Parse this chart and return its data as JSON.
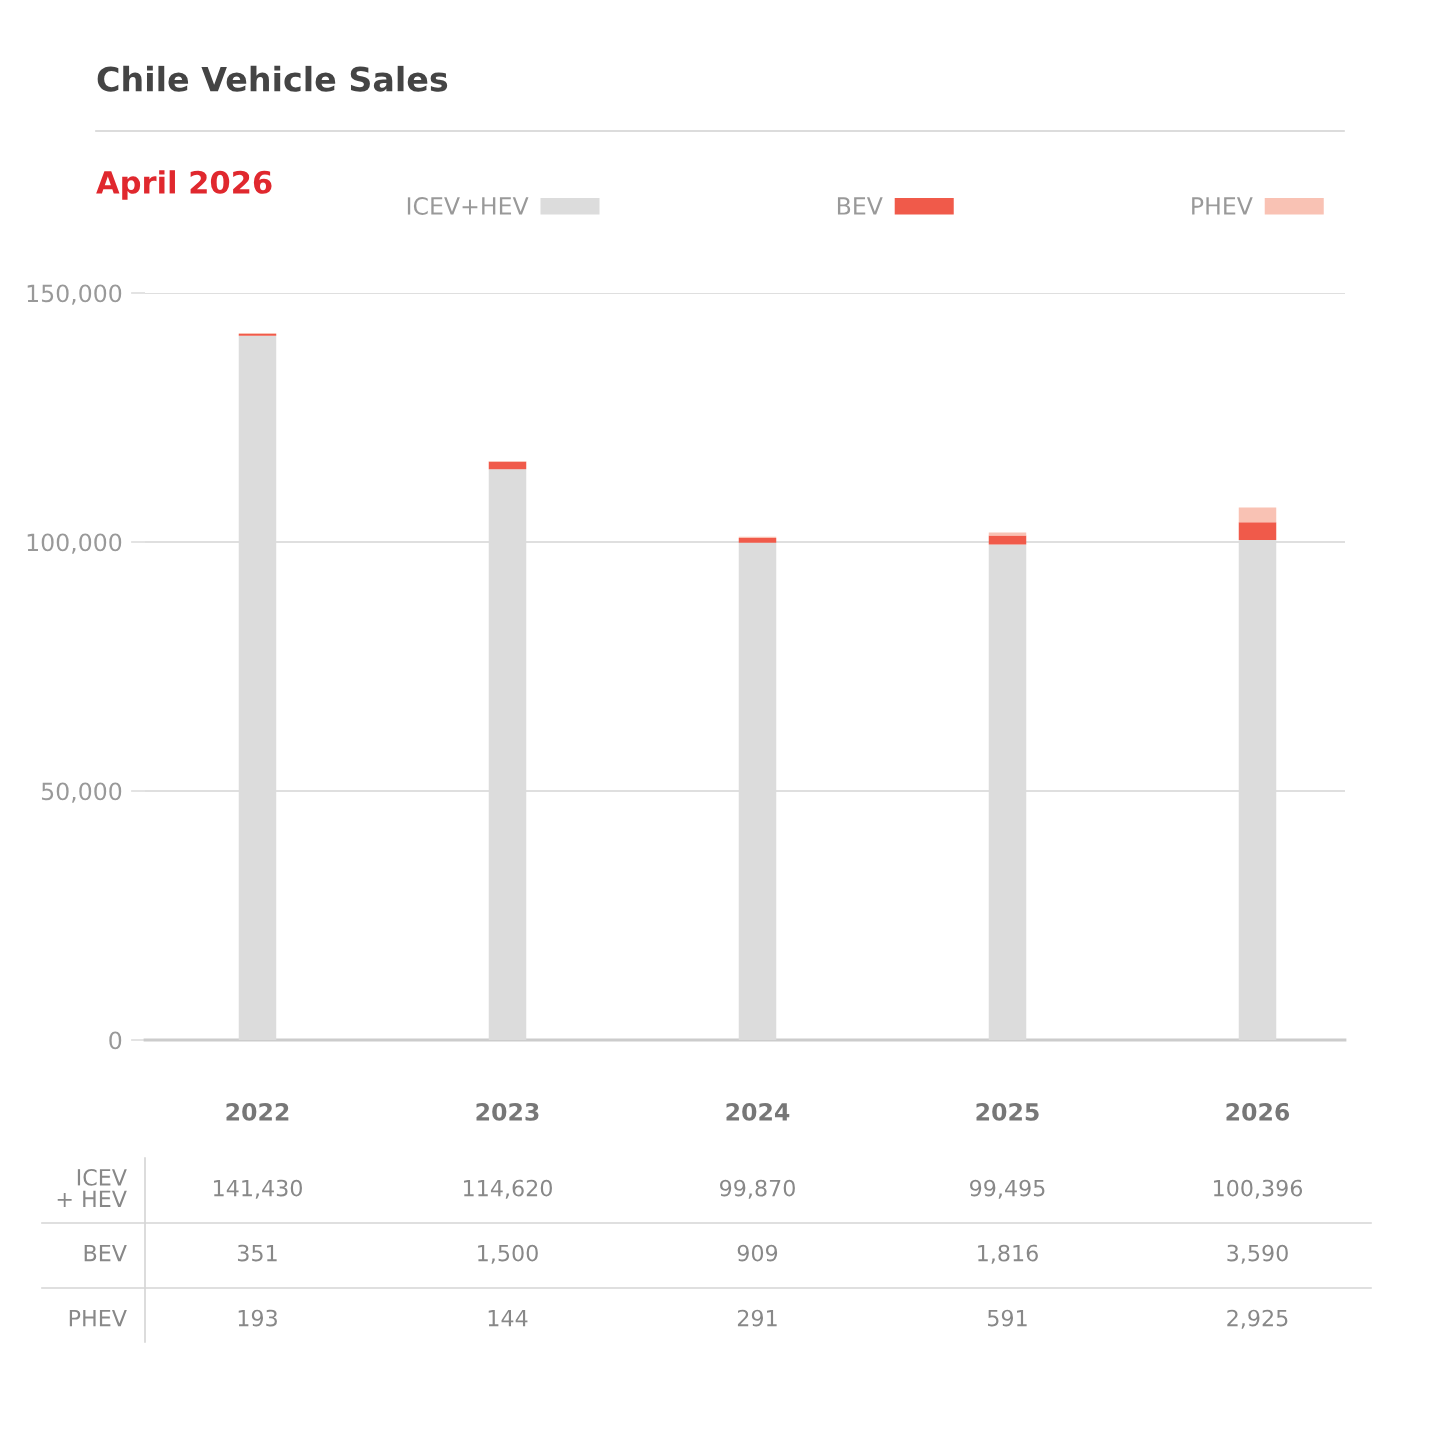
{
  "chart_data": {
    "type": "bar",
    "title": "Chile Vehicle Sales",
    "subtitle": "April 2026",
    "categories": [
      "2022",
      "2023",
      "2024",
      "2025",
      "2026"
    ],
    "series": [
      {
        "name": "ICEV+HEV",
        "color": "#dcdcdc",
        "values": [
          141430,
          114620,
          99870,
          99495,
          100396
        ],
        "value_labels": [
          "141,430",
          "114,620",
          "99,870",
          "99,495",
          "100,396"
        ]
      },
      {
        "name": "BEV",
        "color": "#f05a4a",
        "values": [
          351,
          1500,
          909,
          1816,
          3590
        ],
        "value_labels": [
          "351",
          "1,500",
          "909",
          "1,816",
          "3,590"
        ]
      },
      {
        "name": "PHEV",
        "color": "#f9c2b4",
        "values": [
          193,
          144,
          291,
          591,
          2925
        ],
        "value_labels": [
          "193",
          "144",
          "291",
          "591",
          "2,925"
        ]
      }
    ],
    "stacked": true,
    "ylim": [
      0,
      150000
    ],
    "yticks": [
      0,
      {
        "value": 50000,
        "label": "50,000"
      },
      {
        "value": 100000,
        "label": "100,000"
      },
      {
        "value": 150000,
        "label": "150,000"
      }
    ],
    "grid": "y",
    "legend": "top",
    "annotations": [
      "ICEV\n+ HEV",
      "BEV",
      "PHEV"
    ]
  }
}
